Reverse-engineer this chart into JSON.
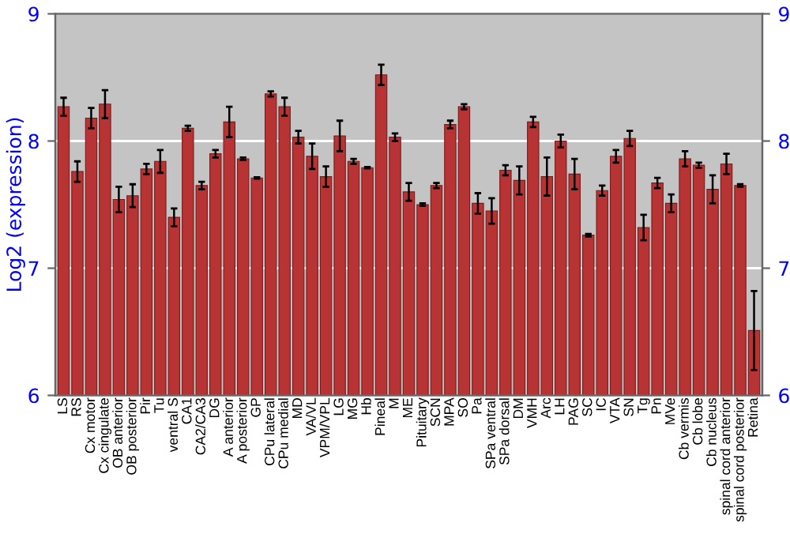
{
  "chart_data": {
    "type": "bar",
    "ylabel": "Log2 (expression)",
    "categories": [
      "LS",
      "RS",
      "Cx motor",
      "Cx cingulate",
      "OB anterior",
      "OB posterior",
      "Pir",
      "Tu",
      "ventral S",
      "CA1",
      "CA2/CA3",
      "DG",
      "A anterior",
      "A posterior",
      "GP",
      "CPu lateral",
      "CPu medial",
      "MD",
      "VA/VL",
      "VPM/VPL",
      "LG",
      "MG",
      "Hb",
      "Pineal",
      "M",
      "ME",
      "Pituitary",
      "SCN",
      "MPA",
      "SO",
      "Pa",
      "SPa ventral",
      "SPa dorsal",
      "DM",
      "VMH",
      "Arc",
      "LH",
      "PAG",
      "SC",
      "IC",
      "VTA",
      "SN",
      "Tg",
      "Pn",
      "MVe",
      "Cb vermis",
      "Cb lobe",
      "Cb nucleus",
      "spinal cord anterior",
      "spinal cord posterior",
      "Retina"
    ],
    "values": [
      8.27,
      7.76,
      8.18,
      8.29,
      7.54,
      7.57,
      7.78,
      7.84,
      7.4,
      8.1,
      7.65,
      7.9,
      8.15,
      7.86,
      7.71,
      8.37,
      8.27,
      8.03,
      7.88,
      7.72,
      8.04,
      7.84,
      7.79,
      8.52,
      8.03,
      7.6,
      7.5,
      7.65,
      8.13,
      8.27,
      7.51,
      7.45,
      7.77,
      7.69,
      8.15,
      7.72,
      8.0,
      7.74,
      7.26,
      7.61,
      7.88,
      8.02,
      7.32,
      7.67,
      7.51,
      7.86,
      7.81,
      7.62,
      7.82,
      7.65,
      6.51
    ],
    "errors": [
      0.07,
      0.08,
      0.08,
      0.11,
      0.1,
      0.09,
      0.04,
      0.09,
      0.07,
      0.02,
      0.03,
      0.03,
      0.12,
      0.01,
      0.005,
      0.02,
      0.07,
      0.05,
      0.1,
      0.08,
      0.12,
      0.02,
      0.005,
      0.08,
      0.03,
      0.07,
      0.01,
      0.02,
      0.03,
      0.02,
      0.08,
      0.1,
      0.04,
      0.11,
      0.04,
      0.15,
      0.05,
      0.12,
      0.01,
      0.04,
      0.05,
      0.06,
      0.1,
      0.04,
      0.07,
      0.06,
      0.02,
      0.11,
      0.08,
      0.01,
      0.31
    ],
    "color": "#b83434",
    "ylim": [
      6,
      9
    ],
    "yticks": [
      6,
      7,
      8,
      9
    ],
    "y2lim": [
      6,
      9
    ],
    "y2ticks": [
      6,
      7,
      8,
      9
    ],
    "grid": "y"
  }
}
